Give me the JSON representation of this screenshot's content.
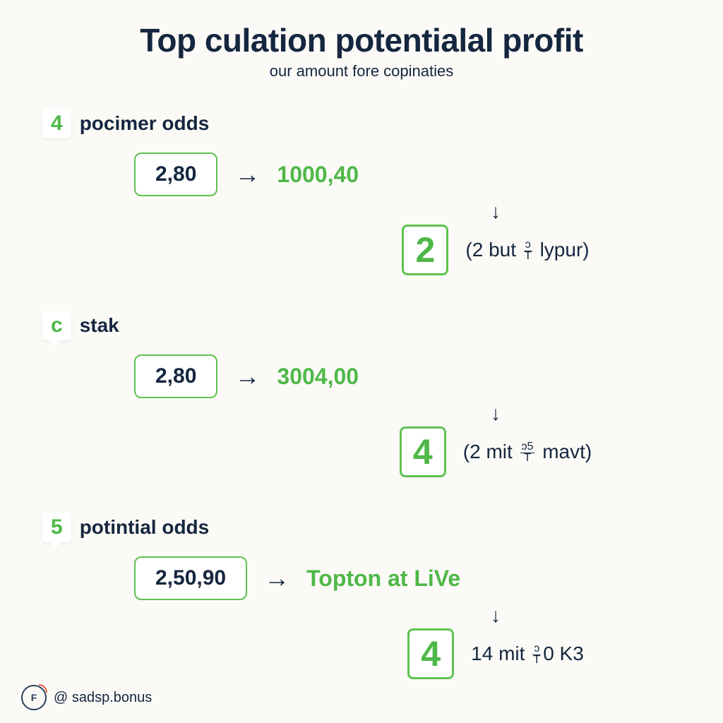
{
  "colors": {
    "background": "#fbfaf6",
    "text_dark": "#15263f",
    "green": "#4fb848",
    "box_border": "#5fc24f",
    "white": "#ffffff",
    "logo_accent": "#e25b3a"
  },
  "typography": {
    "title_fontsize": 46,
    "subtitle_fontsize": 22,
    "section_label_fontsize": 28,
    "value_box_fontsize": 30,
    "result_fontsize": 32,
    "big_num_fontsize": 50,
    "annotation_fontsize": 28
  },
  "header": {
    "title": "Top culation potentialal profit",
    "subtitle": "our amount fore copinaties"
  },
  "sections": [
    {
      "badge": "4",
      "badge_color": "green",
      "label": "pocimer odds",
      "input_value": "2,80",
      "result_value": "1000,40",
      "down_number": "2",
      "annotation_prefix": "(2 but ",
      "annotation_frac_top": "ᴐ",
      "annotation_frac_bot": "T",
      "annotation_suffix": " lypur)"
    },
    {
      "badge": "c",
      "badge_color": "green",
      "label": "stak",
      "input_value": "2,80",
      "result_value": "3004,00",
      "down_number": "4",
      "annotation_prefix": "(2 mit ",
      "annotation_frac_top": "ᴐ5",
      "annotation_frac_bot": "T",
      "annotation_suffix": " mavt)"
    },
    {
      "badge": "5",
      "badge_color": "green",
      "label": "potintial odds",
      "input_value": "2,50,90",
      "result_value": "Topton at LiVe",
      "down_number": "4",
      "annotation_prefix": "14 mit ",
      "annotation_frac_top": "ᴐ",
      "annotation_frac_bot": "T",
      "annotation_suffix": "0 K3"
    }
  ],
  "footer": {
    "handle": "@ sadsp.bonus"
  }
}
